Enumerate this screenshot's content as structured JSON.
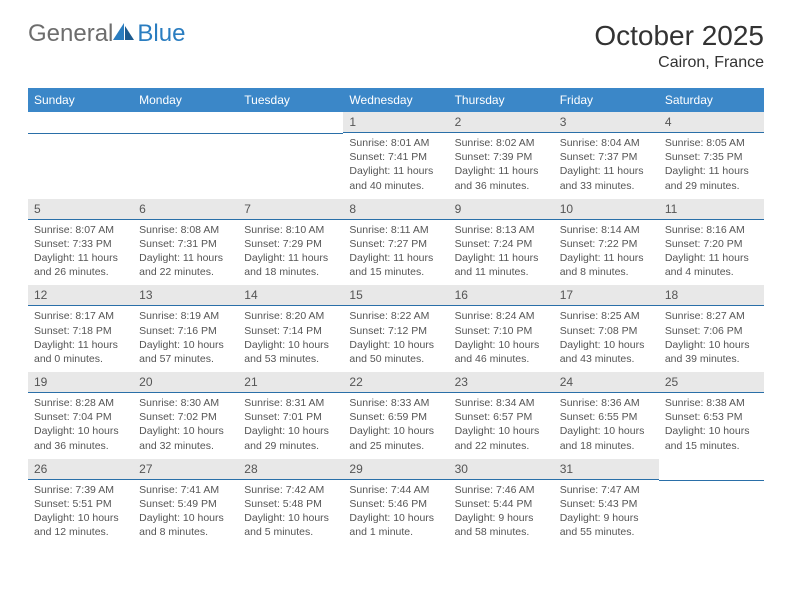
{
  "logo": {
    "general": "General",
    "blue": "Blue"
  },
  "title": "October 2025",
  "location": "Cairon, France",
  "colors": {
    "header_bg": "#3b87c8",
    "header_text": "#ffffff",
    "daynum_bg": "#e8e8e8",
    "daynum_border": "#2a6fa8",
    "body_text": "#555555",
    "logo_gray": "#6d6d6d",
    "logo_blue": "#2a7dc0"
  },
  "day_headers": [
    "Sunday",
    "Monday",
    "Tuesday",
    "Wednesday",
    "Thursday",
    "Friday",
    "Saturday"
  ],
  "weeks": [
    [
      {
        "num": "",
        "sunrise": "",
        "sunset": "",
        "daylight": ""
      },
      {
        "num": "",
        "sunrise": "",
        "sunset": "",
        "daylight": ""
      },
      {
        "num": "",
        "sunrise": "",
        "sunset": "",
        "daylight": ""
      },
      {
        "num": "1",
        "sunrise": "Sunrise: 8:01 AM",
        "sunset": "Sunset: 7:41 PM",
        "daylight": "Daylight: 11 hours and 40 minutes."
      },
      {
        "num": "2",
        "sunrise": "Sunrise: 8:02 AM",
        "sunset": "Sunset: 7:39 PM",
        "daylight": "Daylight: 11 hours and 36 minutes."
      },
      {
        "num": "3",
        "sunrise": "Sunrise: 8:04 AM",
        "sunset": "Sunset: 7:37 PM",
        "daylight": "Daylight: 11 hours and 33 minutes."
      },
      {
        "num": "4",
        "sunrise": "Sunrise: 8:05 AM",
        "sunset": "Sunset: 7:35 PM",
        "daylight": "Daylight: 11 hours and 29 minutes."
      }
    ],
    [
      {
        "num": "5",
        "sunrise": "Sunrise: 8:07 AM",
        "sunset": "Sunset: 7:33 PM",
        "daylight": "Daylight: 11 hours and 26 minutes."
      },
      {
        "num": "6",
        "sunrise": "Sunrise: 8:08 AM",
        "sunset": "Sunset: 7:31 PM",
        "daylight": "Daylight: 11 hours and 22 minutes."
      },
      {
        "num": "7",
        "sunrise": "Sunrise: 8:10 AM",
        "sunset": "Sunset: 7:29 PM",
        "daylight": "Daylight: 11 hours and 18 minutes."
      },
      {
        "num": "8",
        "sunrise": "Sunrise: 8:11 AM",
        "sunset": "Sunset: 7:27 PM",
        "daylight": "Daylight: 11 hours and 15 minutes."
      },
      {
        "num": "9",
        "sunrise": "Sunrise: 8:13 AM",
        "sunset": "Sunset: 7:24 PM",
        "daylight": "Daylight: 11 hours and 11 minutes."
      },
      {
        "num": "10",
        "sunrise": "Sunrise: 8:14 AM",
        "sunset": "Sunset: 7:22 PM",
        "daylight": "Daylight: 11 hours and 8 minutes."
      },
      {
        "num": "11",
        "sunrise": "Sunrise: 8:16 AM",
        "sunset": "Sunset: 7:20 PM",
        "daylight": "Daylight: 11 hours and 4 minutes."
      }
    ],
    [
      {
        "num": "12",
        "sunrise": "Sunrise: 8:17 AM",
        "sunset": "Sunset: 7:18 PM",
        "daylight": "Daylight: 11 hours and 0 minutes."
      },
      {
        "num": "13",
        "sunrise": "Sunrise: 8:19 AM",
        "sunset": "Sunset: 7:16 PM",
        "daylight": "Daylight: 10 hours and 57 minutes."
      },
      {
        "num": "14",
        "sunrise": "Sunrise: 8:20 AM",
        "sunset": "Sunset: 7:14 PM",
        "daylight": "Daylight: 10 hours and 53 minutes."
      },
      {
        "num": "15",
        "sunrise": "Sunrise: 8:22 AM",
        "sunset": "Sunset: 7:12 PM",
        "daylight": "Daylight: 10 hours and 50 minutes."
      },
      {
        "num": "16",
        "sunrise": "Sunrise: 8:24 AM",
        "sunset": "Sunset: 7:10 PM",
        "daylight": "Daylight: 10 hours and 46 minutes."
      },
      {
        "num": "17",
        "sunrise": "Sunrise: 8:25 AM",
        "sunset": "Sunset: 7:08 PM",
        "daylight": "Daylight: 10 hours and 43 minutes."
      },
      {
        "num": "18",
        "sunrise": "Sunrise: 8:27 AM",
        "sunset": "Sunset: 7:06 PM",
        "daylight": "Daylight: 10 hours and 39 minutes."
      }
    ],
    [
      {
        "num": "19",
        "sunrise": "Sunrise: 8:28 AM",
        "sunset": "Sunset: 7:04 PM",
        "daylight": "Daylight: 10 hours and 36 minutes."
      },
      {
        "num": "20",
        "sunrise": "Sunrise: 8:30 AM",
        "sunset": "Sunset: 7:02 PM",
        "daylight": "Daylight: 10 hours and 32 minutes."
      },
      {
        "num": "21",
        "sunrise": "Sunrise: 8:31 AM",
        "sunset": "Sunset: 7:01 PM",
        "daylight": "Daylight: 10 hours and 29 minutes."
      },
      {
        "num": "22",
        "sunrise": "Sunrise: 8:33 AM",
        "sunset": "Sunset: 6:59 PM",
        "daylight": "Daylight: 10 hours and 25 minutes."
      },
      {
        "num": "23",
        "sunrise": "Sunrise: 8:34 AM",
        "sunset": "Sunset: 6:57 PM",
        "daylight": "Daylight: 10 hours and 22 minutes."
      },
      {
        "num": "24",
        "sunrise": "Sunrise: 8:36 AM",
        "sunset": "Sunset: 6:55 PM",
        "daylight": "Daylight: 10 hours and 18 minutes."
      },
      {
        "num": "25",
        "sunrise": "Sunrise: 8:38 AM",
        "sunset": "Sunset: 6:53 PM",
        "daylight": "Daylight: 10 hours and 15 minutes."
      }
    ],
    [
      {
        "num": "26",
        "sunrise": "Sunrise: 7:39 AM",
        "sunset": "Sunset: 5:51 PM",
        "daylight": "Daylight: 10 hours and 12 minutes."
      },
      {
        "num": "27",
        "sunrise": "Sunrise: 7:41 AM",
        "sunset": "Sunset: 5:49 PM",
        "daylight": "Daylight: 10 hours and 8 minutes."
      },
      {
        "num": "28",
        "sunrise": "Sunrise: 7:42 AM",
        "sunset": "Sunset: 5:48 PM",
        "daylight": "Daylight: 10 hours and 5 minutes."
      },
      {
        "num": "29",
        "sunrise": "Sunrise: 7:44 AM",
        "sunset": "Sunset: 5:46 PM",
        "daylight": "Daylight: 10 hours and 1 minute."
      },
      {
        "num": "30",
        "sunrise": "Sunrise: 7:46 AM",
        "sunset": "Sunset: 5:44 PM",
        "daylight": "Daylight: 9 hours and 58 minutes."
      },
      {
        "num": "31",
        "sunrise": "Sunrise: 7:47 AM",
        "sunset": "Sunset: 5:43 PM",
        "daylight": "Daylight: 9 hours and 55 minutes."
      },
      {
        "num": "",
        "sunrise": "",
        "sunset": "",
        "daylight": ""
      }
    ]
  ]
}
